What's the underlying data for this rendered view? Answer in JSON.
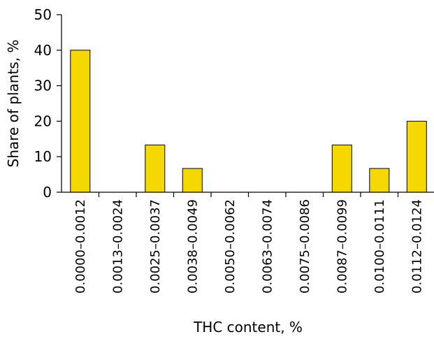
{
  "chart_data": {
    "type": "bar",
    "xlabel": "THC content, %",
    "ylabel": "Share of plants, %",
    "ylim": [
      0,
      50
    ],
    "yticks": [
      0,
      10,
      20,
      30,
      40,
      50
    ],
    "categories": [
      "0.0000–0.0012",
      "0.0013–0.0024",
      "0.0025–0.0037",
      "0.0038–0.0049",
      "0.0050–0.0062",
      "0.0063–0.0074",
      "0.0075–0.0086",
      "0.0087–0.0099",
      "0.0100–0.0111",
      "0.0112–0.0124"
    ],
    "values": [
      40,
      0,
      13.3,
      6.7,
      0,
      0,
      0,
      13.3,
      6.7,
      20
    ],
    "bar_color": "#f5d800",
    "bar_edge_color": "#000000",
    "grid": false,
    "legend": "none"
  }
}
